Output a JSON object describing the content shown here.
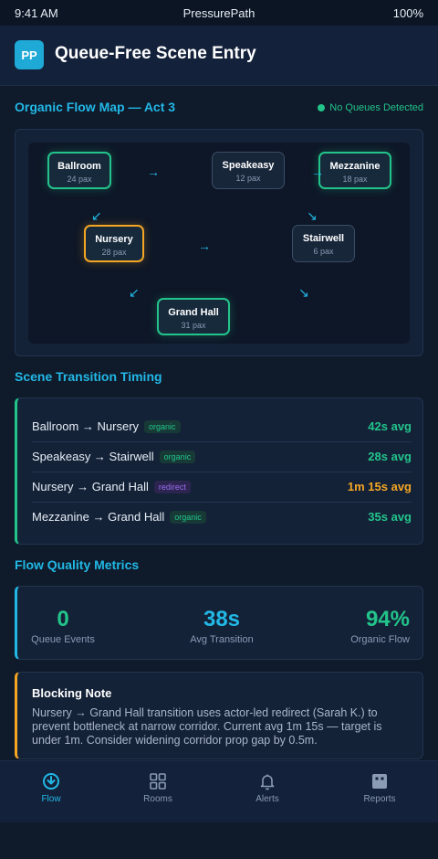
{
  "status_bar": {
    "time": "9:41 AM",
    "carrier": "PressurePath",
    "battery": "100%"
  },
  "header": {
    "logo": "PP",
    "title": "Queue-Free Scene Entry"
  },
  "flow_map": {
    "title": "Organic Flow Map — Act 3",
    "status": "No Queues Detected",
    "rooms": [
      {
        "name": "Ballroom",
        "pax": "24 pax",
        "state": "good"
      },
      {
        "name": "Speakeasy",
        "pax": "12 pax",
        "state": "neutral"
      },
      {
        "name": "Mezzanine",
        "pax": "18 pax",
        "state": "good"
      },
      {
        "name": "Nursery",
        "pax": "28 pax",
        "state": "warn"
      },
      {
        "name": "Stairwell",
        "pax": "6 pax",
        "state": "neutral"
      },
      {
        "name": "Grand Hall",
        "pax": "31 pax",
        "state": "good"
      }
    ],
    "arrows": {
      "right": "→",
      "down": "↓",
      "down_left": "↙",
      "down_right": "↘"
    }
  },
  "timing": {
    "title": "Scene Transition Timing",
    "rows": [
      {
        "label": "Ballroom → Nursery",
        "badge": "organic",
        "value": "42s avg",
        "color": "#22c48a"
      },
      {
        "label": "Speakeasy → Stairwell",
        "badge": "organic",
        "value": "28s avg",
        "color": "#22c48a"
      },
      {
        "label": "Nursery → Grand Hall",
        "badge": "redirect",
        "value": "1m 15s avg",
        "color": "#f4a623"
      },
      {
        "label": "Mezzanine → Grand Hall",
        "badge": "organic",
        "value": "35s avg",
        "color": "#22c48a"
      }
    ]
  },
  "metrics": {
    "title": "Flow Quality Metrics",
    "items": [
      {
        "value": "0",
        "label": "Queue Events",
        "color": "#22c48a"
      },
      {
        "value": "38s",
        "label": "Avg Transition",
        "color": "#22b8e6"
      },
      {
        "value": "94%",
        "label": "Organic Flow",
        "color": "#22c48a"
      }
    ]
  },
  "note": {
    "title": "Blocking Note",
    "body": "Nursery → Grand Hall transition uses actor-led redirect (Sarah K.) to prevent bottleneck at narrow corridor. Current avg 1m 15s — target is under 1m. Consider widening corridor prop gap by 0.5m."
  },
  "nav": [
    {
      "label": "Flow",
      "icon": "flow-icon",
      "active": true
    },
    {
      "label": "Rooms",
      "icon": "grid-icon",
      "active": false
    },
    {
      "label": "Alerts",
      "icon": "bell-icon",
      "active": false
    },
    {
      "label": "Reports",
      "icon": "report-icon",
      "active": false
    }
  ]
}
